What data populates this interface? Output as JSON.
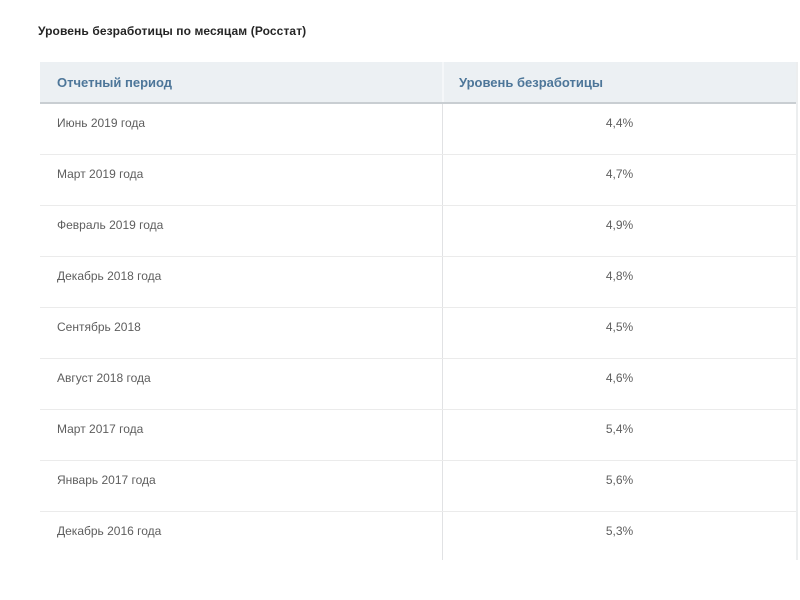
{
  "page_title": "Уровень безработицы по месяцам (Росстат)",
  "table": {
    "columns": [
      {
        "label": "Отчетный период"
      },
      {
        "label": "Уровень безработицы"
      }
    ],
    "rows": [
      {
        "period": "Июнь 2019 года",
        "rate": "4,4%"
      },
      {
        "period": "Март 2019 года",
        "rate": "4,7%"
      },
      {
        "period": "Февраль 2019 года",
        "rate": "4,9%"
      },
      {
        "period": "Декабрь 2018 года",
        "rate": "4,8%"
      },
      {
        "period": "Сентябрь 2018",
        "rate": "4,5%"
      },
      {
        "period": "Август 2018 года",
        "rate": "4,6%"
      },
      {
        "period": "Март 2017 года",
        "rate": "5,4%"
      },
      {
        "period": "Январь 2017 года",
        "rate": "5,6%"
      },
      {
        "period": "Декабрь 2016 года",
        "rate": "5,3%"
      }
    ]
  },
  "colors": {
    "header_bg": "#ecf0f3",
    "header_text": "#4d7699",
    "header_bottom_border": "#c9ced2",
    "body_text": "#5e5e5e",
    "row_divider": "#ebebeb",
    "column_divider": "#e1e2e4",
    "title_text": "#252525"
  },
  "chart_data": {
    "type": "table",
    "title": "Уровень безработицы по месяцам (Росстат)",
    "columns": [
      "Отчетный период",
      "Уровень безработицы"
    ],
    "rows": [
      [
        "Июнь 2019 года",
        "4,4%"
      ],
      [
        "Март 2019 года",
        "4,7%"
      ],
      [
        "Февраль 2019 года",
        "4,9%"
      ],
      [
        "Декабрь 2018 года",
        "4,8%"
      ],
      [
        "Сентябрь 2018",
        "4,5%"
      ],
      [
        "Август 2018 года",
        "4,6%"
      ],
      [
        "Март 2017 года",
        "5,4%"
      ],
      [
        "Январь 2017 года",
        "5,6%"
      ],
      [
        "Декабрь 2016 года",
        "5,3%"
      ]
    ],
    "values_percent": [
      4.4,
      4.7,
      4.9,
      4.8,
      4.5,
      4.6,
      5.4,
      5.6,
      5.3
    ],
    "layout": {
      "last_row_clipped": true,
      "value_alignment": "center"
    }
  }
}
